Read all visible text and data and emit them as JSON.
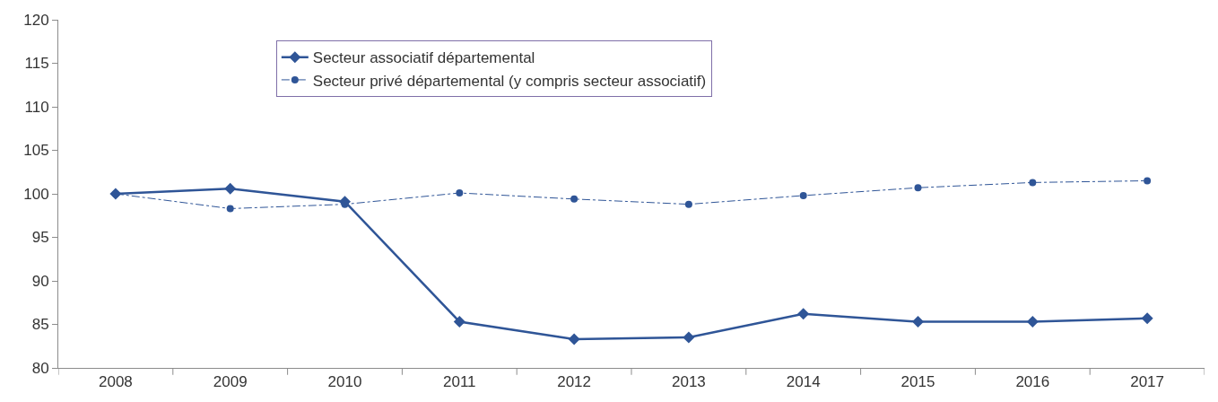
{
  "chart_data": {
    "type": "line",
    "categories": [
      "2008",
      "2009",
      "2010",
      "2011",
      "2012",
      "2013",
      "2014",
      "2015",
      "2016",
      "2017"
    ],
    "series": [
      {
        "name": "Secteur associatif départemental",
        "color": "#2f5597",
        "marker": "diamond",
        "line_style": "solid",
        "values": [
          100,
          100.6,
          99.1,
          85.3,
          83.3,
          83.5,
          86.2,
          85.3,
          85.3,
          85.7
        ]
      },
      {
        "name": "Secteur privé départemental (y compris secteur associatif)",
        "color": "#2f5597",
        "marker": "circle",
        "line_style": "dashdot",
        "values": [
          100,
          98.3,
          98.8,
          100.1,
          99.4,
          98.8,
          99.8,
          100.7,
          101.3,
          101.5
        ]
      }
    ],
    "ylim": [
      80,
      120
    ],
    "yticks": [
      80,
      85,
      90,
      95,
      100,
      105,
      110,
      115,
      120
    ],
    "legend": "top"
  }
}
